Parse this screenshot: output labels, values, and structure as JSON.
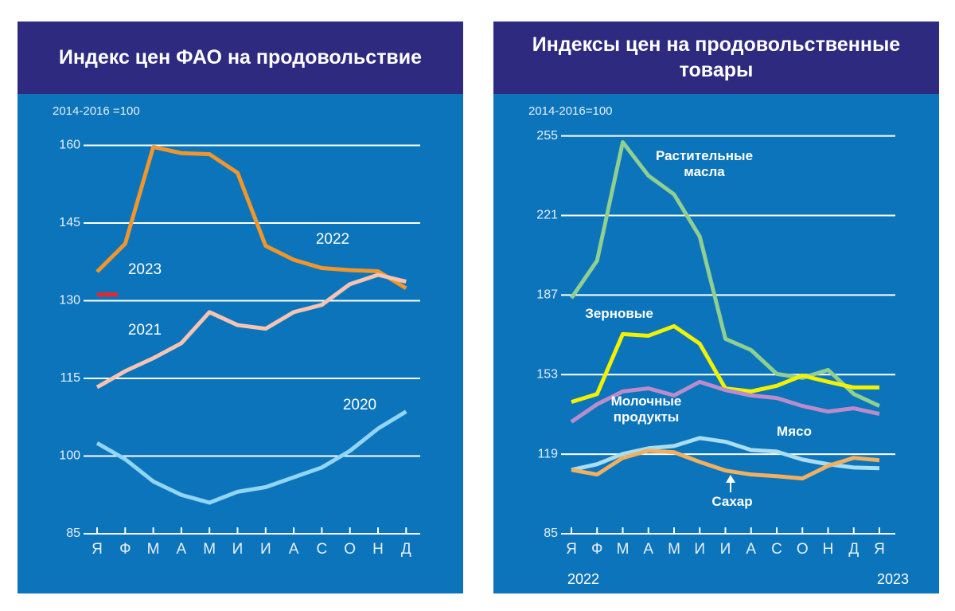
{
  "chart_data": [
    {
      "type": "line",
      "title": "Индекс цен ФАО на продовольствие",
      "subtitle": "2014-2016 =100",
      "categories": [
        "Я",
        "Ф",
        "М",
        "А",
        "М",
        "И",
        "И",
        "А",
        "С",
        "О",
        "Н",
        "Д"
      ],
      "ylim": [
        85,
        165
      ],
      "yticks": [
        85,
        100,
        115,
        130,
        145,
        160
      ],
      "grid": true,
      "series": [
        {
          "name": "2022",
          "color": "#f0962a",
          "values": [
            135.6,
            141.0,
            159.7,
            158.5,
            158.3,
            154.7,
            140.6,
            137.9,
            136.3,
            135.9,
            135.7,
            132.4
          ]
        },
        {
          "name": "2023",
          "color": "#e8262a",
          "values": [
            131.2,
            null,
            null,
            null,
            null,
            null,
            null,
            null,
            null,
            null,
            null,
            null
          ]
        },
        {
          "name": "2021",
          "color": "#f6c4b2",
          "values": [
            113.3,
            116.4,
            118.9,
            121.8,
            127.8,
            125.3,
            124.6,
            127.8,
            129.2,
            133.2,
            135.0,
            133.7
          ]
        },
        {
          "name": "2020",
          "color": "#92d5f2",
          "values": [
            102.5,
            99.4,
            95.1,
            92.5,
            91.0,
            93.1,
            94.0,
            95.9,
            97.8,
            101.0,
            105.3,
            108.6
          ]
        }
      ]
    },
    {
      "type": "line",
      "title": "Индексы цен на продовольственные товары",
      "subtitle": "2014-2016=100",
      "categories": [
        "Я",
        "Ф",
        "М",
        "А",
        "М",
        "И",
        "И",
        "А",
        "С",
        "О",
        "Н",
        "Д",
        "Я"
      ],
      "annotations": [
        "2022",
        "2023"
      ],
      "ylim": [
        85,
        262
      ],
      "yticks": [
        85,
        119,
        153,
        187,
        221,
        255
      ],
      "grid": true,
      "series": [
        {
          "name": "Растительные масла",
          "color": "#8fcf8f",
          "values": [
            185.7,
            201.7,
            252.3,
            238.0,
            230.0,
            212.0,
            168.3,
            163.5,
            153.3,
            151.6,
            155.0,
            144.7,
            139.6
          ]
        },
        {
          "name": "Зерновые",
          "color": "#f2f200",
          "values": [
            141.3,
            144.7,
            170.3,
            169.6,
            173.7,
            166.2,
            147.1,
            145.8,
            148.2,
            152.6,
            149.9,
            147.5,
            147.5
          ]
        },
        {
          "name": "Молочные продукты",
          "color": "#bb8ccb",
          "values": [
            132.8,
            140.3,
            145.8,
            147.1,
            144.1,
            149.9,
            146.4,
            144.1,
            143.0,
            139.6,
            137.2,
            138.6,
            136.2
          ]
        },
        {
          "name": "Мясо",
          "color": "#a9ddf0",
          "values": [
            112.3,
            114.7,
            119.1,
            121.5,
            122.5,
            125.9,
            124.3,
            120.8,
            120.1,
            116.7,
            114.7,
            113.3,
            113.0
          ]
        },
        {
          "name": "Сахар",
          "color": "#f0b060",
          "values": [
            112.3,
            110.3,
            117.4,
            120.5,
            119.8,
            115.7,
            112.0,
            110.3,
            109.6,
            108.6,
            114.0,
            117.4,
            116.4
          ]
        }
      ]
    }
  ]
}
